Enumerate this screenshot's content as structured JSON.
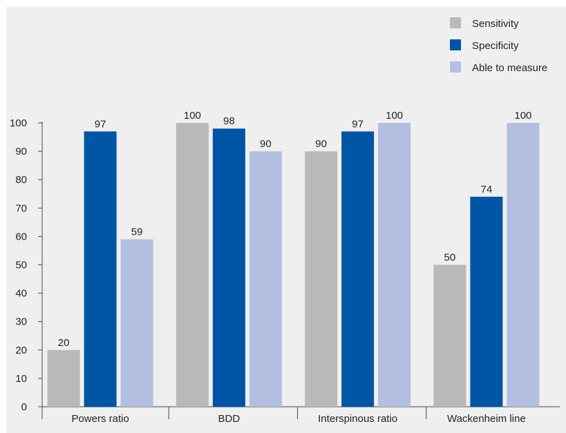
{
  "chart_data": {
    "type": "bar",
    "title": "",
    "xlabel": "",
    "ylabel": "",
    "ylim": [
      0,
      100
    ],
    "yticks": [
      0,
      10,
      20,
      30,
      40,
      50,
      60,
      70,
      80,
      90,
      100
    ],
    "grid": false,
    "legend_position": "top-right",
    "categories": [
      "Powers ratio",
      "BDD",
      "Interspinous ratio",
      "Wackenheim line"
    ],
    "series": [
      {
        "name": "Sensitivity",
        "color": "#b9b9bb",
        "values": [
          20,
          100,
          90,
          50
        ]
      },
      {
        "name": "Specificity",
        "color": "#0055a4",
        "values": [
          97,
          98,
          97,
          74
        ]
      },
      {
        "name": "Able to measure",
        "color": "#b3bfe0",
        "values": [
          59,
          90,
          100,
          100
        ]
      }
    ]
  }
}
